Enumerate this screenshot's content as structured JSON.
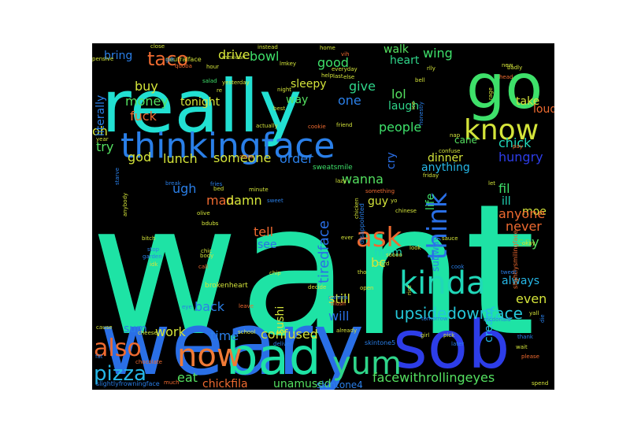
{
  "cloud": {
    "background": "#000000",
    "words": [
      {
        "text": "want",
        "color": "#1ee3a5"
      },
      {
        "text": "weary",
        "color": "#2a6fe6"
      },
      {
        "text": "really",
        "color": "#22e0d2"
      },
      {
        "text": "sob",
        "color": "#2d3de8"
      },
      {
        "text": "go",
        "color": "#3ee06a"
      },
      {
        "text": "bad",
        "color": "#1ee3a5"
      },
      {
        "text": "thinkingface",
        "color": "#2a7fe8"
      },
      {
        "text": "know",
        "color": "#d4e43a"
      },
      {
        "text": "now",
        "color": "#f07a36"
      },
      {
        "text": "kinda",
        "color": "#20d7b8"
      },
      {
        "text": "yum",
        "color": "#2fd58a"
      },
      {
        "text": "ask",
        "color": "#ee6a30"
      },
      {
        "text": "think",
        "color": "#2a6fe6"
      },
      {
        "text": "also",
        "color": "#ee6a30"
      },
      {
        "text": "pizza",
        "color": "#26b7e6"
      },
      {
        "text": "taco",
        "color": "#ee6a30"
      },
      {
        "text": "upsidedownface",
        "color": "#24c7d8"
      },
      {
        "text": "facewithrollingeyes",
        "color": "#54e060"
      },
      {
        "text": "confused",
        "color": "#d4e43a"
      },
      {
        "text": "tiredface",
        "color": "#2a6fe6"
      },
      {
        "text": "drive",
        "color": "#d4e43a"
      },
      {
        "text": "bowl",
        "color": "#3ee06a"
      },
      {
        "text": "good",
        "color": "#3ee06a"
      },
      {
        "text": "wing",
        "color": "#3ee06a"
      },
      {
        "text": "walk",
        "color": "#54e060"
      },
      {
        "text": "heart",
        "color": "#2fd58a"
      },
      {
        "text": "lol",
        "color": "#54e060"
      },
      {
        "text": "laugh",
        "color": "#2fd58a"
      },
      {
        "text": "take",
        "color": "#d4e43a"
      },
      {
        "text": "loud",
        "color": "#ee6a30"
      },
      {
        "text": "one",
        "color": "#2a7fe8"
      },
      {
        "text": "give",
        "color": "#2fd58a"
      },
      {
        "text": "way",
        "color": "#54e060"
      },
      {
        "text": "sleepy",
        "color": "#d4e43a"
      },
      {
        "text": "people",
        "color": "#3ee06a"
      },
      {
        "text": "chick",
        "color": "#20d7b8"
      },
      {
        "text": "cane",
        "color": "#54e060"
      },
      {
        "text": "dinner",
        "color": "#d4e43a"
      },
      {
        "text": "anything",
        "color": "#26b7e6"
      },
      {
        "text": "hungry",
        "color": "#2d3de8"
      },
      {
        "text": "order",
        "color": "#2a7fe8"
      },
      {
        "text": "wanna",
        "color": "#54e060"
      },
      {
        "text": "cry",
        "color": "#2a6fe6"
      },
      {
        "text": "guy",
        "color": "#d4e43a"
      },
      {
        "text": "mom",
        "color": "#20d7b8"
      },
      {
        "text": "bc",
        "color": "#d4e43a"
      },
      {
        "text": "life",
        "color": "#3ee06a"
      },
      {
        "text": "fil",
        "color": "#3ee06a"
      },
      {
        "text": "moe",
        "color": "#d4e43a"
      },
      {
        "text": "ill",
        "color": "#20d7b8"
      },
      {
        "text": "anyone",
        "color": "#ee6a30"
      },
      {
        "text": "never",
        "color": "#ee6a30"
      },
      {
        "text": "say",
        "color": "#54e060"
      },
      {
        "text": "always",
        "color": "#26b7e6"
      },
      {
        "text": "even",
        "color": "#d4e43a"
      },
      {
        "text": "cream",
        "color": "#26b7e6"
      },
      {
        "text": "subway",
        "color": "#2a7fe8"
      },
      {
        "text": "bring",
        "color": "#2a7fe8"
      },
      {
        "text": "buy",
        "color": "#d4e43a"
      },
      {
        "text": "money",
        "color": "#54e060"
      },
      {
        "text": "tonight",
        "color": "#d4e43a"
      },
      {
        "text": "fuck",
        "color": "#ee6a30"
      },
      {
        "text": "oh",
        "color": "#d4e43a"
      },
      {
        "text": "try",
        "color": "#54e060"
      },
      {
        "text": "god",
        "color": "#d4e43a"
      },
      {
        "text": "lunch",
        "color": "#d4e43a"
      },
      {
        "text": "someone",
        "color": "#d4e43a"
      },
      {
        "text": "ugh",
        "color": "#2a7fe8"
      },
      {
        "text": "man",
        "color": "#ee6a30"
      },
      {
        "text": "damn",
        "color": "#d4e43a"
      },
      {
        "text": "tell",
        "color": "#ee6a30"
      },
      {
        "text": "see",
        "color": "#2a6fe6"
      },
      {
        "text": "back",
        "color": "#2a7fe8"
      },
      {
        "text": "time",
        "color": "#2a7fe8"
      },
      {
        "text": "sum",
        "color": "#2a7fe8"
      },
      {
        "text": "work",
        "color": "#d4e43a"
      },
      {
        "text": "still",
        "color": "#d4e43a"
      },
      {
        "text": "will",
        "color": "#2a6fe6"
      },
      {
        "text": "sushi",
        "color": "#d4e43a"
      },
      {
        "text": "eat",
        "color": "#54e060"
      },
      {
        "text": "chickfila",
        "color": "#ee6a30"
      },
      {
        "text": "unamused",
        "color": "#54e060"
      },
      {
        "text": "skintone4",
        "color": "#2a7fe8"
      },
      {
        "text": "literally",
        "color": "#2a7fe8"
      },
      {
        "text": "sweatsmile",
        "color": "#3ee06a"
      },
      {
        "text": "brokenheart",
        "color": "#d4e43a"
      },
      {
        "text": "disappointed",
        "color": "#2a7fe8"
      },
      {
        "text": "skintone5",
        "color": "#2a7fe8"
      },
      {
        "text": "slightlysmilingface",
        "color": "#ee6a30"
      },
      {
        "text": "slightlyfrowningface",
        "color": "#2a7fe8"
      },
      {
        "text": "neutralface",
        "color": "#d4e43a"
      },
      {
        "text": "instead",
        "color": "#d4e43a"
      },
      {
        "text": "fries",
        "color": "#2a7fe8"
      },
      {
        "text": "yesterday",
        "color": "#d4e43a"
      },
      {
        "text": "salad",
        "color": "#3ee06a"
      },
      {
        "text": "chinese",
        "color": "#d4e43a"
      },
      {
        "text": "chocolate",
        "color": "#ee6a30"
      },
      {
        "text": "mcdonald",
        "color": "#2a7fe8"
      },
      {
        "text": "tomorrow",
        "color": "#2a7fe8"
      },
      {
        "text": "please",
        "color": "#ee6a30"
      },
      {
        "text": "thank",
        "color": "#2a7fe8"
      },
      {
        "text": "friend",
        "color": "#d4e43a"
      },
      {
        "text": "hour",
        "color": "#d4e43a"
      },
      {
        "text": "night",
        "color": "#d4e43a"
      },
      {
        "text": "best",
        "color": "#d4e43a"
      },
      {
        "text": "actually",
        "color": "#d4e43a"
      },
      {
        "text": "cookie",
        "color": "#ee6a30"
      },
      {
        "text": "already",
        "color": "#d4e43a"
      },
      {
        "text": "everyday",
        "color": "#d4e43a"
      },
      {
        "text": "honestly",
        "color": "#2a7fe8"
      },
      {
        "text": "chicken",
        "color": "#d4e43a"
      },
      {
        "text": "mexican",
        "color": "#d4e43a"
      },
      {
        "text": "garden",
        "color": "#2a7fe8"
      },
      {
        "text": "olive",
        "color": "#d4e43a"
      },
      {
        "text": "body",
        "color": "#d4e43a"
      },
      {
        "text": "bitch",
        "color": "#d4e43a"
      },
      {
        "text": "chip",
        "color": "#d4e43a"
      },
      {
        "text": "leave",
        "color": "#ee6a30"
      },
      {
        "text": "school",
        "color": "#d4e43a"
      },
      {
        "text": "deliver",
        "color": "#2a7fe8"
      },
      {
        "text": "panera",
        "color": "#2a7fe8"
      },
      {
        "text": "blush",
        "color": "#ee6a30"
      },
      {
        "text": "girl",
        "color": "#d4e43a"
      },
      {
        "text": "pick",
        "color": "#d4e43a"
      },
      {
        "text": "later",
        "color": "#2a7fe8"
      },
      {
        "text": "wait",
        "color": "#d4e43a"
      },
      {
        "text": "spend",
        "color": "#d4e43a"
      },
      {
        "text": "yall",
        "color": "#d4e43a"
      },
      {
        "text": "okay",
        "color": "#d4e43a"
      },
      {
        "text": "card",
        "color": "#d4e43a"
      },
      {
        "text": "sauce",
        "color": "#d4e43a"
      },
      {
        "text": "rice",
        "color": "#d4e43a"
      },
      {
        "text": "open",
        "color": "#d4e43a"
      },
      {
        "text": "decide",
        "color": "#d4e43a"
      },
      {
        "text": "cheese",
        "color": "#d4e43a"
      },
      {
        "text": "cause",
        "color": "#d4e43a"
      },
      {
        "text": "much",
        "color": "#ee6a30"
      },
      {
        "text": "gift",
        "color": "#2a7fe8"
      },
      {
        "text": "close",
        "color": "#d4e43a"
      },
      {
        "text": "pensive",
        "color": "#d4e43a"
      },
      {
        "text": "qdoba",
        "color": "#ee6a30"
      },
      {
        "text": "help",
        "color": "#d4e43a"
      },
      {
        "text": "else",
        "color": "#d4e43a"
      },
      {
        "text": "last",
        "color": "#d4e43a"
      },
      {
        "text": "home",
        "color": "#d4e43a"
      },
      {
        "text": "rlly",
        "color": "#d4e43a"
      },
      {
        "text": "bell",
        "color": "#d4e43a"
      },
      {
        "text": "head",
        "color": "#ee6a30"
      },
      {
        "text": "badly",
        "color": "#d4e43a"
      },
      {
        "text": "nap",
        "color": "#d4e43a"
      },
      {
        "text": "confuse",
        "color": "#d4e43a"
      },
      {
        "text": "friday",
        "color": "#d4e43a"
      },
      {
        "text": "lazy",
        "color": "#d4e43a"
      },
      {
        "text": "let",
        "color": "#d4e43a"
      },
      {
        "text": "something",
        "color": "#ee6a30"
      },
      {
        "text": "minute",
        "color": "#d4e43a"
      },
      {
        "text": "starve",
        "color": "#2a7fe8"
      },
      {
        "text": "anybody",
        "color": "#d4e43a"
      },
      {
        "text": "break",
        "color": "#2a7fe8"
      },
      {
        "text": "chic",
        "color": "#d4e43a"
      },
      {
        "text": "bed",
        "color": "#d4e43a"
      },
      {
        "text": "fat",
        "color": "#2a7fe8"
      },
      {
        "text": "look",
        "color": "#d4e43a"
      },
      {
        "text": "cook",
        "color": "#2a7fe8"
      },
      {
        "text": "tho",
        "color": "#d4e43a"
      },
      {
        "text": "soooo",
        "color": "#d4e43a"
      },
      {
        "text": "idk",
        "color": "#d4e43a"
      },
      {
        "text": "call",
        "color": "#ee6a30"
      },
      {
        "text": "stop",
        "color": "#2a7fe8"
      },
      {
        "text": "bdubs",
        "color": "#d4e43a"
      },
      {
        "text": "eye",
        "color": "#2a7fe8"
      },
      {
        "text": "ever",
        "color": "#d4e43a"
      },
      {
        "text": "yo",
        "color": "#d4e43a"
      },
      {
        "text": "sweet",
        "color": "#2a7fe8"
      },
      {
        "text": "class",
        "color": "#ee6a30"
      },
      {
        "text": "pay",
        "color": "#ee6a30"
      },
      {
        "text": "new",
        "color": "#d4e43a"
      },
      {
        "text": "rage",
        "color": "#d4e43a"
      },
      {
        "text": "ice",
        "color": "#d4e43a"
      },
      {
        "text": "tweet",
        "color": "#2a7fe8"
      },
      {
        "text": "die",
        "color": "#2a7fe8"
      },
      {
        "text": "year",
        "color": "#d4e43a"
      },
      {
        "text": "lmkey",
        "color": "#d4e43a"
      },
      {
        "text": "re",
        "color": "#d4e43a"
      },
      {
        "text": "vih",
        "color": "#ee6a30"
      }
    ]
  }
}
